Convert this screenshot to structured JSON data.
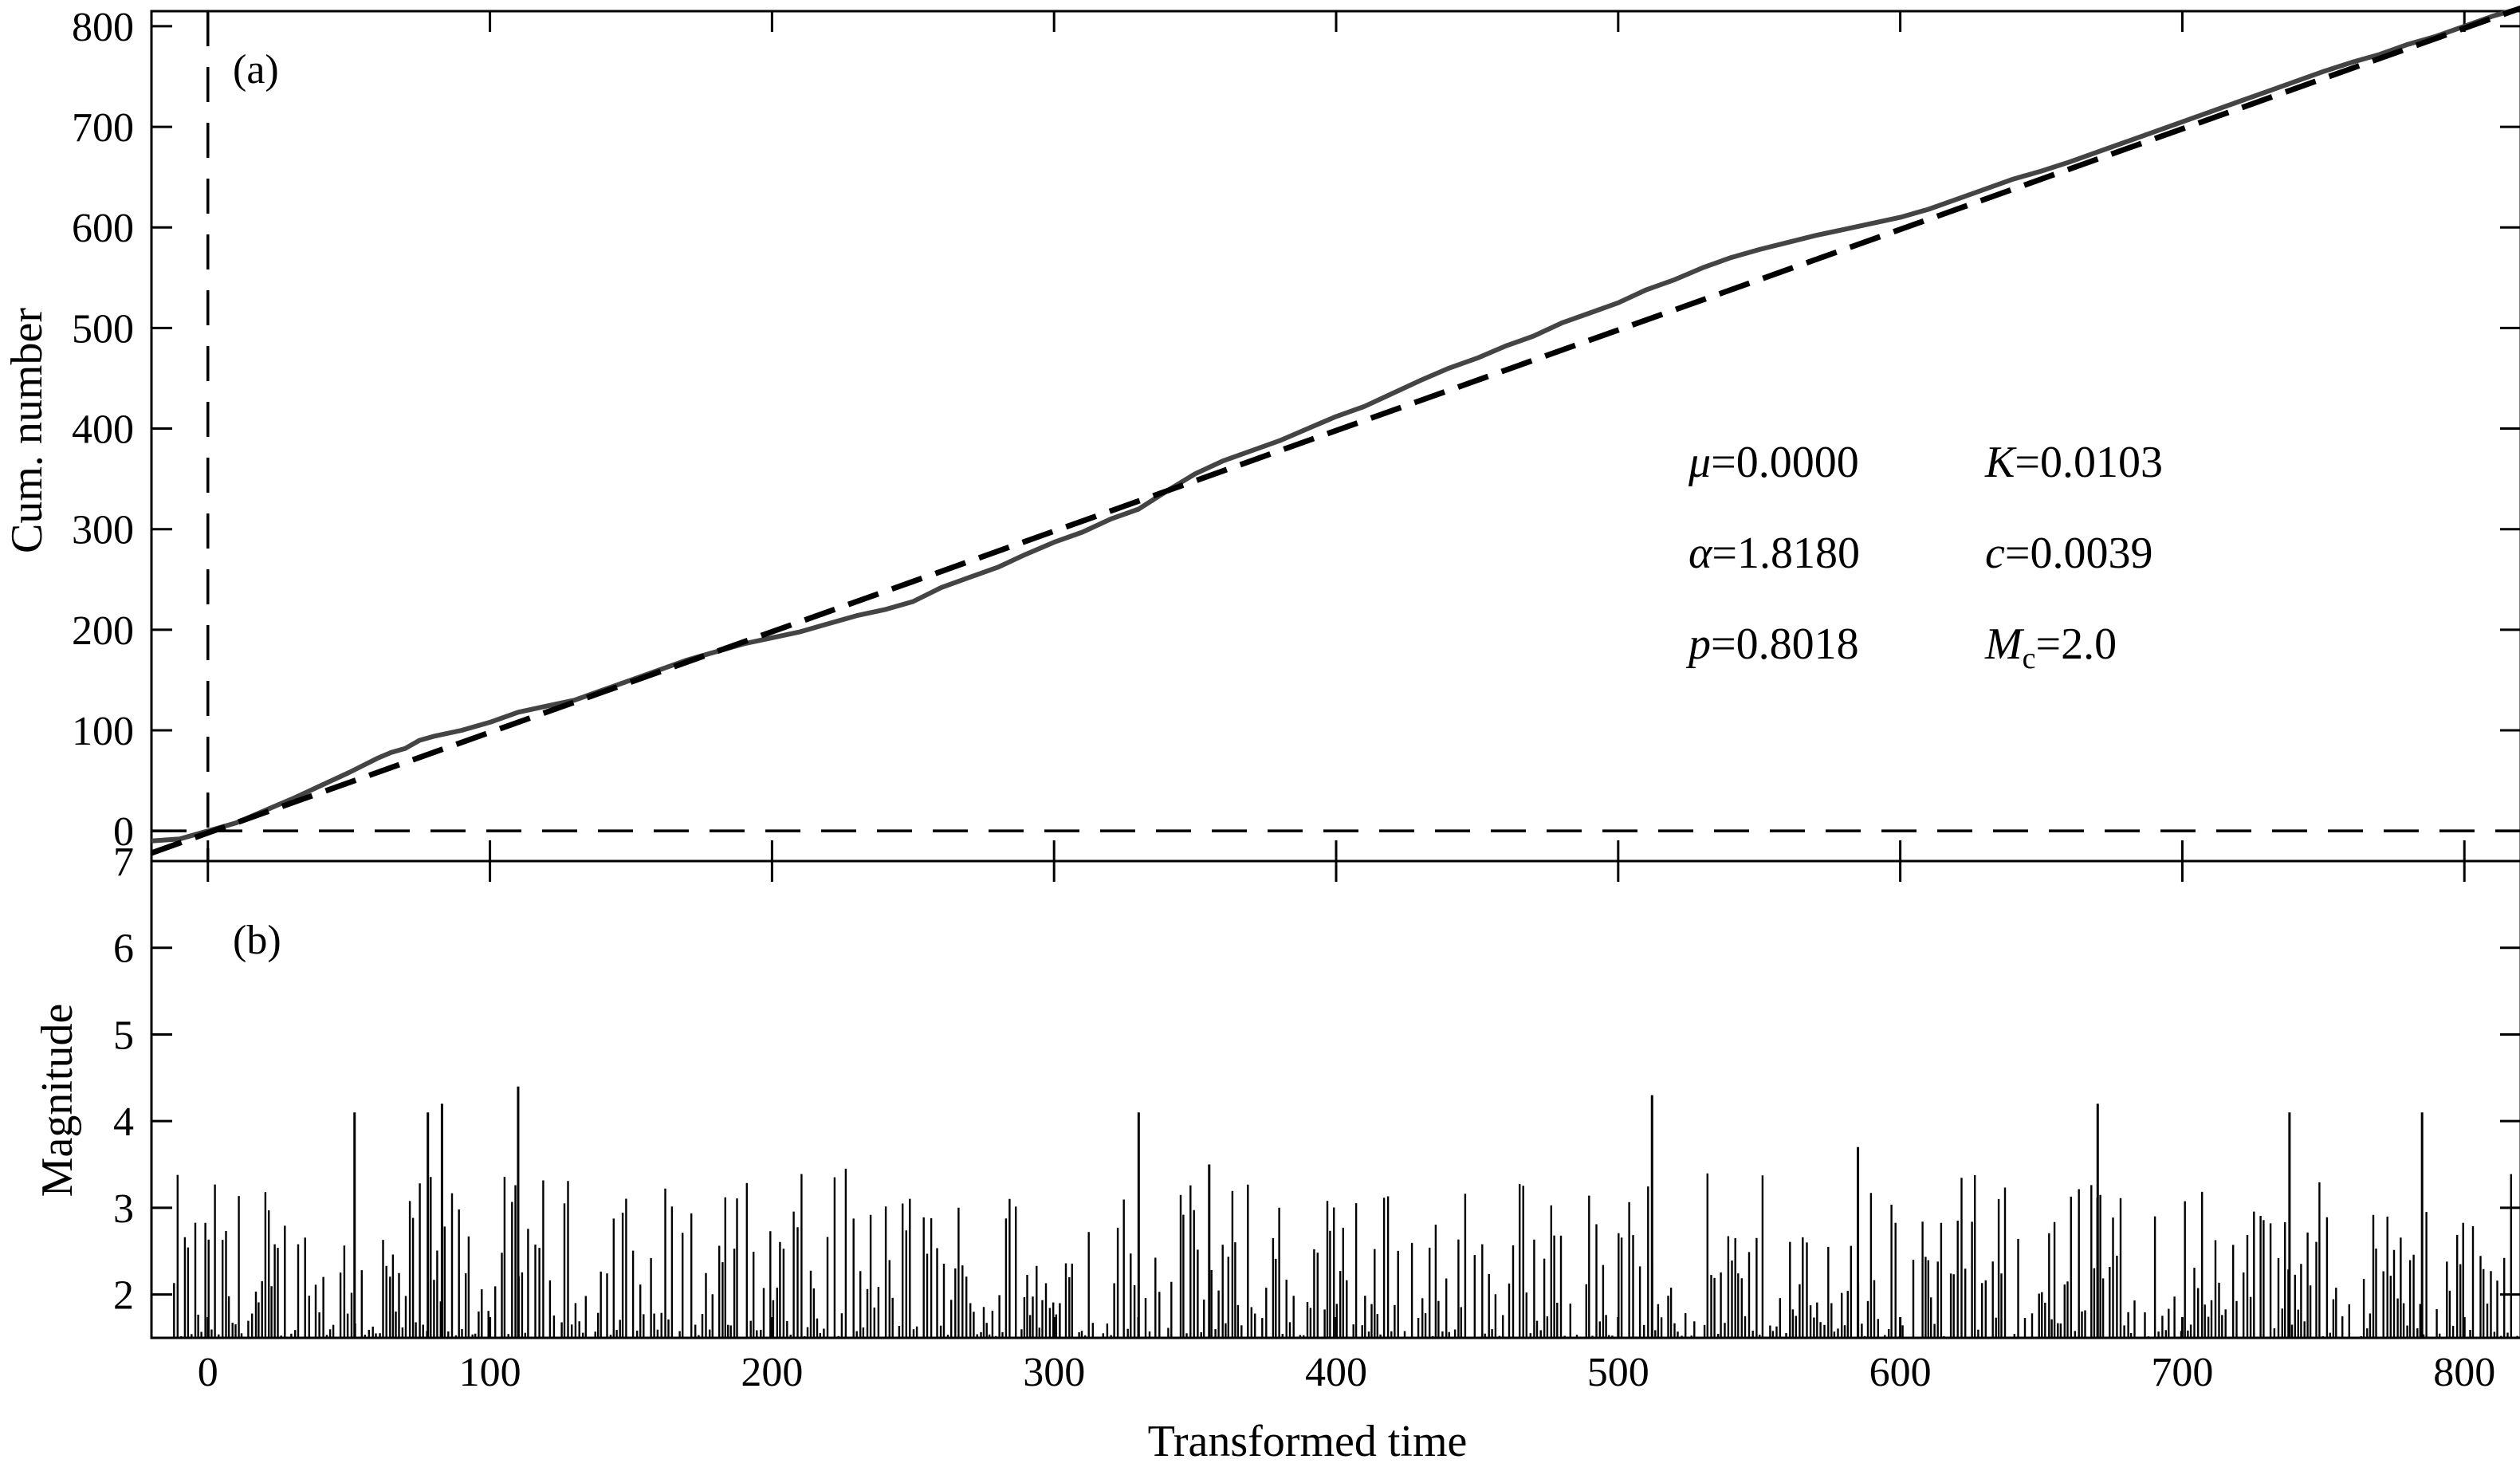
{
  "chart_data": [
    {
      "panel_label": "(a)",
      "type": "line",
      "xlabel": "",
      "ylabel": "Cum. number",
      "xlim": [
        -20,
        820
      ],
      "ylim": [
        -30,
        815
      ],
      "xticks": [
        0,
        100,
        200,
        300,
        400,
        500,
        600,
        700,
        800
      ],
      "yticks": [
        0,
        100,
        200,
        300,
        400,
        500,
        600,
        700,
        800
      ],
      "grid": false,
      "reference_lines": {
        "x": 0,
        "y": 0,
        "style": "dashed"
      },
      "series": [
        {
          "style": "solid-gray",
          "x": [
            -20,
            -10,
            0,
            10,
            20,
            30,
            40,
            50,
            60,
            65,
            70,
            75,
            80,
            90,
            100,
            110,
            120,
            130,
            140,
            150,
            160,
            170,
            180,
            190,
            200,
            210,
            220,
            230,
            240,
            250,
            260,
            270,
            280,
            290,
            300,
            310,
            320,
            330,
            340,
            350,
            360,
            370,
            380,
            390,
            400,
            410,
            420,
            430,
            440,
            450,
            460,
            470,
            480,
            490,
            500,
            510,
            520,
            530,
            540,
            550,
            560,
            570,
            580,
            590,
            600,
            610,
            620,
            630,
            640,
            650,
            660,
            670,
            680,
            690,
            700,
            710,
            720,
            730,
            740,
            750,
            760,
            770,
            780,
            790,
            800,
            810,
            820
          ],
          "y": [
            -10,
            -8,
            0,
            8,
            20,
            32,
            45,
            58,
            72,
            78,
            82,
            90,
            94,
            100,
            108,
            118,
            124,
            130,
            140,
            150,
            160,
            170,
            178,
            186,
            192,
            198,
            206,
            214,
            220,
            228,
            242,
            252,
            262,
            275,
            287,
            297,
            310,
            320,
            338,
            355,
            368,
            378,
            388,
            400,
            412,
            422,
            435,
            448,
            460,
            470,
            482,
            492,
            505,
            515,
            525,
            538,
            548,
            560,
            570,
            578,
            585,
            592,
            598,
            604,
            610,
            618,
            628,
            638,
            648,
            656,
            665,
            675,
            685,
            695,
            705,
            715,
            725,
            735,
            745,
            755,
            764,
            772,
            782,
            790,
            800,
            810,
            818
          ]
        },
        {
          "style": "dashed-black",
          "x": [
            -20,
            820
          ],
          "y": [
            -22,
            818
          ]
        }
      ]
    },
    {
      "panel_label": "(b)",
      "type": "bar",
      "xlabel": "Transformed time",
      "ylabel": "Magnitude",
      "xlim": [
        -20,
        820
      ],
      "ylim": [
        1.5,
        7
      ],
      "xticks": [
        0,
        100,
        200,
        300,
        400,
        500,
        600,
        700,
        800
      ],
      "yticks": [
        2,
        3,
        4,
        5,
        6,
        7
      ],
      "grid": false,
      "baseline": 1.5,
      "highlight_events": [
        {
          "x": 52,
          "value": 4.1
        },
        {
          "x": 78,
          "value": 4.1
        },
        {
          "x": 83,
          "value": 4.2
        },
        {
          "x": 110,
          "value": 4.4
        },
        {
          "x": 330,
          "value": 4.1
        },
        {
          "x": 355,
          "value": 3.5
        },
        {
          "x": 512,
          "value": 4.3
        },
        {
          "x": 585,
          "value": 3.7
        },
        {
          "x": 670,
          "value": 4.2
        },
        {
          "x": 738,
          "value": 4.1
        },
        {
          "x": 785,
          "value": 4.1
        }
      ]
    }
  ],
  "parameters": [
    {
      "symbol": "μ",
      "sub": "",
      "value": "=0.0000"
    },
    {
      "symbol": "K",
      "sub": "",
      "value": "=0.0103"
    },
    {
      "symbol": "α",
      "sub": "",
      "value": "=1.8180"
    },
    {
      "symbol": "c",
      "sub": "",
      "value": "=0.0039"
    },
    {
      "symbol": "p",
      "sub": "",
      "value": "=0.8018"
    },
    {
      "symbol": "M",
      "sub": "c",
      "value": "=2.0"
    }
  ],
  "colors": {
    "observed_line": "#444444",
    "fit_line": "#000000",
    "axes": "#000000",
    "background": "#ffffff"
  }
}
